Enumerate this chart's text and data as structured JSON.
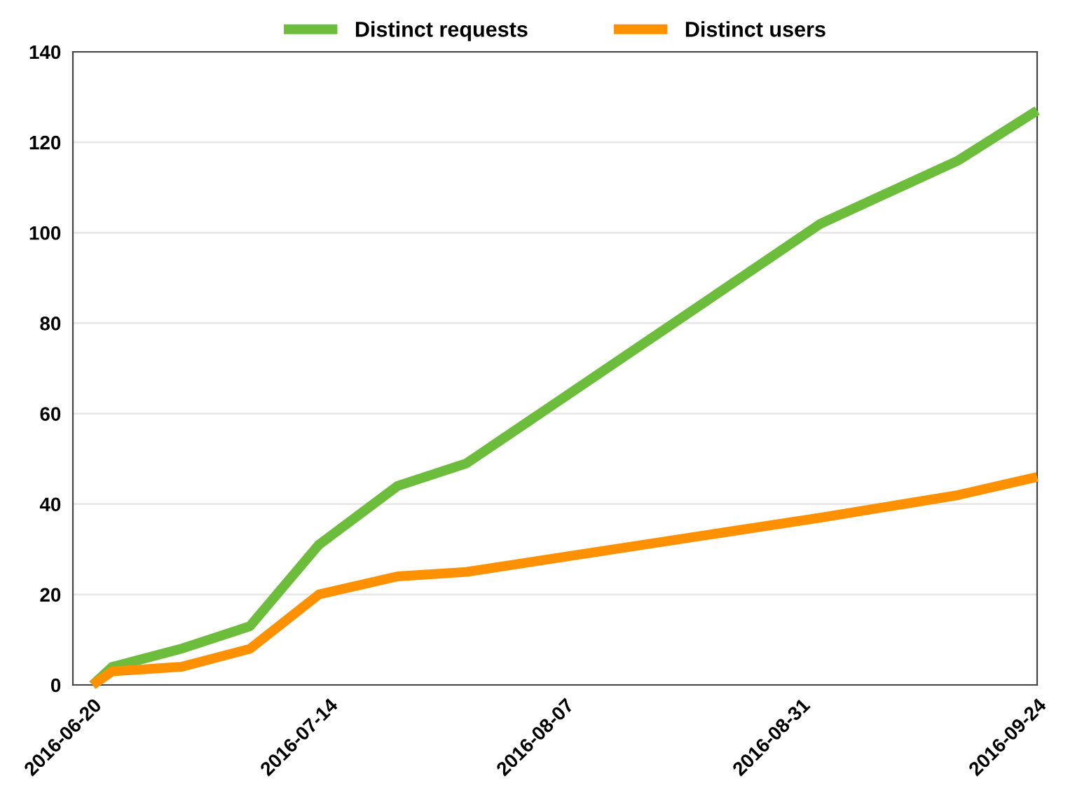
{
  "chart_data": {
    "type": "line",
    "x": [
      "2016-06-20",
      "2016-06-22",
      "2016-06-29",
      "2016-07-06",
      "2016-07-13",
      "2016-07-21",
      "2016-07-28",
      "2016-09-02",
      "2016-09-16",
      "2016-09-24"
    ],
    "series": [
      {
        "name": "Distinct requests",
        "color": "#6dbd3c",
        "values": [
          0,
          4,
          8,
          13,
          31,
          44,
          49,
          102,
          116,
          127
        ]
      },
      {
        "name": "Distinct users",
        "color": "#ff9100",
        "values": [
          0,
          3,
          4,
          8,
          20,
          24,
          25,
          37,
          42,
          46
        ]
      }
    ],
    "xlim": [
      "2016-06-18",
      "2016-09-24"
    ],
    "xticks": [
      {
        "value": "2016-06-20",
        "label": "2016-06-20"
      },
      {
        "value": "2016-07-14",
        "label": "2016-07-14"
      },
      {
        "value": "2016-08-07",
        "label": "2016-08-07"
      },
      {
        "value": "2016-08-31",
        "label": "2016-08-31"
      },
      {
        "value": "2016-09-24",
        "label": "2016-09-24"
      }
    ],
    "ylim": [
      0,
      140
    ],
    "yticks": [
      0,
      20,
      40,
      60,
      80,
      100,
      120,
      140
    ],
    "grid": "y",
    "legend": "top",
    "marker": "none",
    "line_style": "solid"
  }
}
